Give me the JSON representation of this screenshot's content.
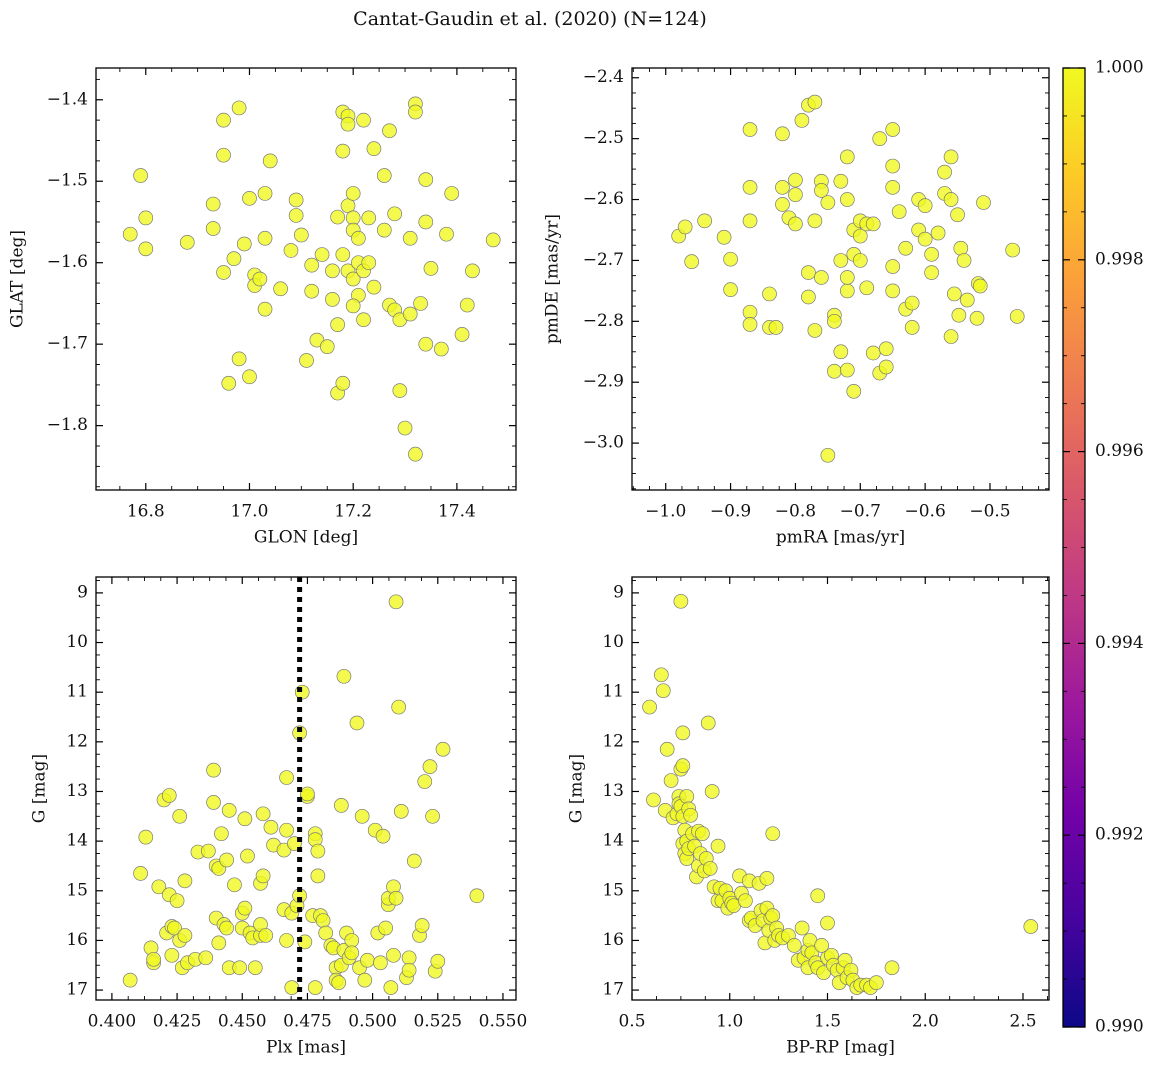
{
  "title": "Cantat-Gaudin et al. (2020) (N=124)",
  "chart_data": [
    {
      "type": "scatter",
      "xlabel": "GLON [deg]",
      "ylabel": "GLAT [deg]",
      "color": "#f0f921",
      "edgecolor": "#7a7a7a",
      "xlim": [
        16.704,
        17.514
      ],
      "ylim": [
        -1.879,
        -1.361
      ],
      "xticks": [
        16.8,
        {
          "value": 17,
          "label": "17.0"
        },
        17.2,
        17.4
      ],
      "yticks": [
        {
          "value": -1.4,
          "label": "−1.4"
        },
        {
          "value": -1.5,
          "label": "−1.5"
        },
        {
          "value": -1.6,
          "label": "−1.6"
        },
        {
          "value": -1.7,
          "label": "−1.7"
        },
        {
          "value": -1.8,
          "label": "−1.8"
        }
      ],
      "x": [
        16.77,
        16.79,
        16.8,
        16.8,
        16.88,
        16.93,
        16.93,
        16.95,
        16.95,
        16.95,
        16.96,
        16.97,
        16.98,
        16.98,
        16.99,
        17.0,
        17.0,
        17.01,
        17.01,
        17.02,
        17.03,
        17.03,
        17.03,
        17.04,
        17.06,
        17.08,
        17.09,
        17.09,
        17.1,
        17.11,
        17.12,
        17.12,
        17.13,
        17.14,
        17.15,
        17.16,
        17.16,
        17.17,
        17.17,
        17.17,
        17.18,
        17.18,
        17.18,
        17.19,
        17.19,
        17.19,
        17.19,
        17.2,
        17.2,
        17.2,
        17.2,
        17.21,
        17.21,
        17.21,
        17.22,
        17.22,
        17.23,
        17.23,
        17.24,
        17.24,
        17.18,
        17.2,
        17.22,
        17.26,
        17.26,
        17.27,
        17.27,
        17.28,
        17.28,
        17.29,
        17.29,
        17.3,
        17.31,
        17.31,
        17.32,
        17.32,
        17.32,
        17.33,
        17.34,
        17.34,
        17.34,
        17.35,
        17.37,
        17.38,
        17.39,
        17.41,
        17.42,
        17.43,
        17.47
      ],
      "values": [
        -1.565,
        -1.493,
        -1.545,
        -1.583,
        -1.575,
        -1.528,
        -1.558,
        -1.425,
        -1.468,
        -1.612,
        -1.748,
        -1.595,
        -1.41,
        -1.718,
        -1.577,
        -1.74,
        -1.521,
        -1.615,
        -1.628,
        -1.62,
        -1.515,
        -1.57,
        -1.657,
        -1.475,
        -1.632,
        -1.585,
        -1.523,
        -1.542,
        -1.566,
        -1.72,
        -1.603,
        -1.635,
        -1.695,
        -1.59,
        -1.703,
        -1.645,
        -1.61,
        -1.544,
        -1.676,
        -1.76,
        -1.463,
        -1.59,
        -1.415,
        -1.42,
        -1.43,
        -1.61,
        -1.53,
        -1.62,
        -1.545,
        -1.56,
        -1.515,
        -1.6,
        -1.57,
        -1.64,
        -1.425,
        -1.61,
        -1.545,
        -1.6,
        -1.46,
        -1.63,
        -1.748,
        -1.653,
        -1.67,
        -1.56,
        -1.493,
        -1.438,
        -1.652,
        -1.658,
        -1.54,
        -1.757,
        -1.67,
        -1.803,
        -1.663,
        -1.57,
        -1.405,
        -1.415,
        -1.835,
        -1.65,
        -1.55,
        -1.498,
        -1.7,
        -1.607,
        -1.706,
        -1.565,
        -1.515,
        -1.688,
        -1.652,
        -1.61,
        -1.572
      ]
    },
    {
      "type": "scatter",
      "xlabel": "pmRA [mas/yr]",
      "ylabel": "pmDE [mas/yr]",
      "color": "#f0f921",
      "edgecolor": "#7a7a7a",
      "xlim": [
        -1.052,
        -0.409
      ],
      "ylim": [
        -3.077,
        -2.384
      ],
      "xticks": [
        {
          "value": -1.0,
          "label": "−1.0"
        },
        {
          "value": -0.9,
          "label": "−0.9"
        },
        {
          "value": -0.8,
          "label": "−0.8"
        },
        {
          "value": -0.7,
          "label": "−0.7"
        },
        {
          "value": -0.6,
          "label": "−0.6"
        },
        {
          "value": -0.5,
          "label": "−0.5"
        }
      ],
      "yticks": [
        {
          "value": -2.4,
          "label": "−2.4"
        },
        {
          "value": -2.5,
          "label": "−2.5"
        },
        {
          "value": -2.6,
          "label": "−2.6"
        },
        {
          "value": -2.7,
          "label": "−2.7"
        },
        {
          "value": -2.8,
          "label": "−2.8"
        },
        {
          "value": -2.9,
          "label": "−2.9"
        },
        {
          "value": -3.0,
          "label": "−3.0"
        }
      ],
      "x": [
        -0.98,
        -0.97,
        -0.96,
        -0.94,
        -0.91,
        -0.9,
        -0.9,
        -0.87,
        -0.87,
        -0.87,
        -0.87,
        -0.87,
        -0.84,
        -0.84,
        -0.83,
        -0.82,
        -0.82,
        -0.82,
        -0.81,
        -0.8,
        -0.8,
        -0.8,
        -0.79,
        -0.78,
        -0.77,
        -0.78,
        -0.78,
        -0.77,
        -0.77,
        -0.76,
        -0.76,
        -0.76,
        -0.75,
        -0.75,
        -0.74,
        -0.74,
        -0.74,
        -0.73,
        -0.73,
        -0.73,
        -0.72,
        -0.72,
        -0.72,
        -0.72,
        -0.72,
        -0.71,
        -0.71,
        -0.71,
        -0.7,
        -0.7,
        -0.7,
        -0.69,
        -0.69,
        -0.68,
        -0.67,
        -0.68,
        -0.67,
        -0.66,
        -0.66,
        -0.65,
        -0.65,
        -0.65,
        -0.65,
        -0.65,
        -0.64,
        -0.63,
        -0.63,
        -0.62,
        -0.62,
        -0.61,
        -0.61,
        -0.6,
        -0.6,
        -0.59,
        -0.59,
        -0.58,
        -0.57,
        -0.57,
        -0.56,
        -0.56,
        -0.56,
        -0.555,
        -0.55,
        -0.548,
        -0.545,
        -0.54,
        -0.535,
        -0.52,
        -0.518,
        -0.515,
        -0.51,
        -0.465,
        -0.458
      ],
      "values": [
        -2.66,
        -2.645,
        -2.702,
        -2.635,
        -2.662,
        -2.698,
        -2.748,
        -2.485,
        -2.58,
        -2.635,
        -2.785,
        -2.805,
        -2.755,
        -2.81,
        -2.81,
        -2.58,
        -2.492,
        -2.608,
        -2.63,
        -2.592,
        -2.568,
        -2.64,
        -2.47,
        -2.445,
        -2.44,
        -2.76,
        -2.72,
        -2.635,
        -2.815,
        -2.57,
        -2.728,
        -2.585,
        -2.605,
        -3.02,
        -2.882,
        -2.79,
        -2.8,
        -2.57,
        -2.7,
        -2.85,
        -2.53,
        -2.6,
        -2.75,
        -2.728,
        -2.88,
        -2.915,
        -2.65,
        -2.69,
        -2.635,
        -2.66,
        -2.7,
        -2.64,
        -2.745,
        -2.852,
        -2.885,
        -2.64,
        -2.5,
        -2.845,
        -2.875,
        -2.71,
        -2.75,
        -2.58,
        -2.545,
        -2.485,
        -2.62,
        -2.78,
        -2.68,
        -2.81,
        -2.77,
        -2.65,
        -2.6,
        -2.665,
        -2.61,
        -2.69,
        -2.72,
        -2.655,
        -2.555,
        -2.59,
        -2.53,
        -2.6,
        -2.825,
        -2.755,
        -2.625,
        -2.79,
        -2.68,
        -2.7,
        -2.765,
        -2.795,
        -2.738,
        -2.742,
        -2.605,
        -2.683,
        -2.792
      ]
    },
    {
      "type": "scatter",
      "xlabel": "Plx [mas]",
      "ylabel": "G [mag]",
      "color": "#f0f921",
      "edgecolor": "#7a7a7a",
      "xlim": [
        0.3939,
        0.555
      ],
      "ylim": [
        17.2,
        8.68
      ],
      "vline": 0.472,
      "xticks": [
        {
          "value": 0.4,
          "label": "0.400"
        },
        0.425,
        {
          "value": 0.45,
          "label": "0.450"
        },
        0.475,
        {
          "value": 0.5,
          "label": "0.500"
        },
        0.525,
        {
          "value": 0.55,
          "label": "0.550"
        }
      ],
      "yticks": [
        9,
        10,
        11,
        12,
        13,
        14,
        15,
        16,
        17
      ],
      "x": [
        0.407,
        0.411,
        0.413,
        0.415,
        0.416,
        0.416,
        0.418,
        0.42,
        0.421,
        0.422,
        0.422,
        0.423,
        0.423,
        0.424,
        0.425,
        0.426,
        0.426,
        0.427,
        0.428,
        0.428,
        0.429,
        0.432,
        0.433,
        0.436,
        0.437,
        0.439,
        0.439,
        0.44,
        0.44,
        0.441,
        0.441,
        0.442,
        0.443,
        0.444,
        0.444,
        0.445,
        0.445,
        0.447,
        0.449,
        0.45,
        0.45,
        0.451,
        0.451,
        0.452,
        0.453,
        0.454,
        0.455,
        0.457,
        0.457,
        0.457,
        0.458,
        0.458,
        0.459,
        0.461,
        0.462,
        0.466,
        0.466,
        0.467,
        0.467,
        0.467,
        0.469,
        0.469,
        0.47,
        0.471,
        0.472,
        0.472,
        0.473,
        0.474,
        0.475,
        0.475,
        0.477,
        0.478,
        0.478,
        0.478,
        0.479,
        0.479,
        0.48,
        0.481,
        0.482,
        0.484,
        0.485,
        0.486,
        0.486,
        0.487,
        0.488,
        0.488,
        0.489,
        0.489,
        0.49,
        0.491,
        0.492,
        0.492,
        0.494,
        0.495,
        0.496,
        0.497,
        0.498,
        0.501,
        0.502,
        0.503,
        0.504,
        0.505,
        0.506,
        0.506,
        0.507,
        0.508,
        0.508,
        0.509,
        0.509,
        0.51,
        0.511,
        0.513,
        0.514,
        0.514,
        0.516,
        0.518,
        0.519,
        0.52,
        0.522,
        0.523,
        0.524,
        0.525,
        0.527,
        0.54
      ],
      "values": [
        16.8,
        14.65,
        13.92,
        16.15,
        16.45,
        16.38,
        14.92,
        13.17,
        15.85,
        13.08,
        15.08,
        15.72,
        16.3,
        15.75,
        15.2,
        13.5,
        16.0,
        16.55,
        14.8,
        15.9,
        16.45,
        16.38,
        14.22,
        16.35,
        14.2,
        12.57,
        13.22,
        14.5,
        15.55,
        14.55,
        16.05,
        13.85,
        15.68,
        14.38,
        15.75,
        16.55,
        13.38,
        14.88,
        16.55,
        15.75,
        15.45,
        15.35,
        13.55,
        14.3,
        15.85,
        15.95,
        16.55,
        15.9,
        15.68,
        14.85,
        13.45,
        14.7,
        15.9,
        13.72,
        14.08,
        15.38,
        14.18,
        13.78,
        12.72,
        16.0,
        16.95,
        15.45,
        14.05,
        15.3,
        15.1,
        11.82,
        11.0,
        16.03,
        13.1,
        13.05,
        15.5,
        13.85,
        13.97,
        16.95,
        14.2,
        14.7,
        15.5,
        15.6,
        15.85,
        16.1,
        16.15,
        16.55,
        16.8,
        16.85,
        16.5,
        13.28,
        10.68,
        16.2,
        15.85,
        16.35,
        16.0,
        16.25,
        11.62,
        16.55,
        13.5,
        16.8,
        16.4,
        13.78,
        15.85,
        16.45,
        13.9,
        15.75,
        15.28,
        15.15,
        16.95,
        16.3,
        14.92,
        9.18,
        15.15,
        11.3,
        13.4,
        16.75,
        16.35,
        16.6,
        14.4,
        15.9,
        15.7,
        12.8,
        12.5,
        13.5,
        16.62,
        16.42,
        12.15,
        15.1
      ]
    },
    {
      "type": "scatter",
      "xlabel": "BP-RP [mag]",
      "ylabel": "G [mag]",
      "color": "#f0f921",
      "edgecolor": "#7a7a7a",
      "xlim": [
        0.5,
        2.633
      ],
      "ylim": [
        17.2,
        8.68
      ],
      "xticks": [
        0.5,
        {
          "value": 1,
          "label": "1.0"
        },
        1.5,
        {
          "value": 2,
          "label": "2.0"
        },
        2.5
      ],
      "yticks": [
        9,
        10,
        11,
        12,
        13,
        14,
        15,
        16,
        17
      ],
      "x": [
        0.59,
        0.61,
        0.65,
        0.66,
        0.67,
        0.68,
        0.7,
        0.71,
        0.73,
        0.74,
        0.74,
        0.75,
        0.75,
        0.75,
        0.76,
        0.76,
        0.76,
        0.76,
        0.77,
        0.77,
        0.78,
        0.78,
        0.78,
        0.79,
        0.79,
        0.8,
        0.81,
        0.82,
        0.83,
        0.84,
        0.84,
        0.85,
        0.86,
        0.87,
        0.88,
        0.89,
        0.9,
        0.91,
        0.92,
        0.94,
        0.94,
        0.95,
        0.96,
        0.98,
        0.99,
        1.0,
        1.01,
        1.02,
        1.05,
        1.06,
        1.08,
        1.1,
        1.1,
        1.11,
        1.13,
        1.15,
        1.16,
        1.17,
        1.18,
        1.19,
        1.19,
        1.2,
        1.21,
        1.22,
        1.22,
        1.23,
        1.24,
        1.25,
        1.27,
        1.3,
        1.33,
        1.35,
        1.37,
        1.38,
        1.4,
        1.4,
        1.41,
        1.42,
        1.44,
        1.45,
        1.45,
        1.47,
        1.48,
        1.5,
        1.5,
        1.52,
        1.53,
        1.55,
        1.56,
        1.58,
        1.59,
        1.6,
        1.62,
        1.63,
        1.65,
        1.67,
        1.7,
        1.72,
        1.75,
        1.83,
        2.54
      ],
      "values": [
        11.3,
        13.17,
        10.65,
        10.97,
        13.38,
        12.15,
        12.78,
        13.53,
        13.45,
        13.1,
        13.25,
        12.55,
        13.3,
        9.17,
        11.82,
        12.48,
        13.5,
        14.05,
        13.78,
        14.25,
        14.0,
        14.35,
        13.1,
        14.15,
        13.35,
        13.48,
        13.85,
        14.1,
        14.72,
        14.5,
        13.8,
        14.25,
        13.85,
        14.6,
        14.35,
        11.62,
        14.55,
        13.0,
        14.92,
        14.1,
        15.2,
        14.95,
        15.2,
        15.0,
        15.35,
        15.15,
        15.25,
        15.3,
        14.7,
        15.05,
        15.2,
        15.6,
        14.8,
        15.55,
        15.7,
        14.85,
        15.4,
        15.6,
        16.05,
        15.35,
        14.75,
        15.8,
        15.55,
        13.85,
        15.5,
        16.0,
        15.75,
        15.9,
        15.95,
        15.9,
        16.1,
        16.4,
        15.75,
        16.35,
        16.2,
        16.55,
        16.0,
        16.25,
        16.45,
        15.1,
        16.55,
        16.1,
        16.65,
        16.35,
        15.65,
        16.3,
        16.5,
        16.6,
        16.85,
        16.55,
        16.4,
        16.75,
        16.6,
        16.8,
        16.95,
        16.9,
        16.9,
        16.95,
        16.85,
        16.55,
        15.72
      ]
    }
  ],
  "colorbar": {
    "cmap": "plasma",
    "ylim": [
      0.99,
      1.0
    ],
    "yticks": [
      {
        "value": 0.99,
        "label": "0.990"
      },
      0.992,
      0.994,
      0.996,
      0.998,
      {
        "value": 1.0,
        "label": "1.000"
      }
    ]
  }
}
